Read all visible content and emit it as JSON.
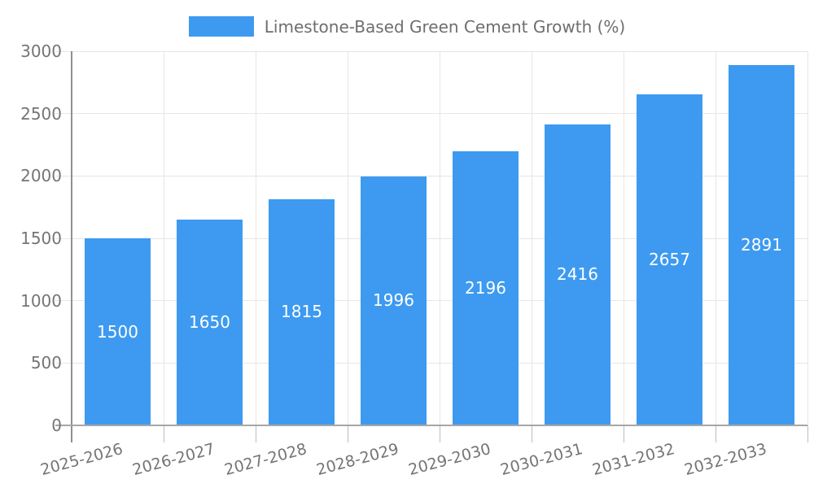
{
  "legend": {
    "label": "Limestone-Based Green Cement Growth (%)"
  },
  "chart_data": {
    "type": "bar",
    "title": "Limestone-Based Green Cement Growth (%)",
    "categories": [
      "2025-2026",
      "2026-2027",
      "2027-2028",
      "2028-2029",
      "2029-2030",
      "2030-2031",
      "2031-2032",
      "2032-2033"
    ],
    "series": [
      {
        "name": "Limestone-Based Green Cement Growth (%)",
        "values": [
          1500,
          1650,
          1815,
          1996,
          2196,
          2416,
          2657,
          2891
        ]
      }
    ],
    "xlabel": "",
    "ylabel": "",
    "ylim": [
      0,
      3000
    ],
    "yticks": [
      0,
      500,
      1000,
      1500,
      2000,
      2500,
      3000
    ],
    "bar_value_labels": [
      1500,
      1650,
      1815,
      1996,
      2196,
      2416,
      2657,
      2891
    ],
    "grid": true,
    "legend_position": "top",
    "x_label_rotation_deg": -15
  },
  "colors": {
    "bar": "#3d9af0",
    "bar_value_text": "#ffffff",
    "gridline": "#e6e6e6",
    "axis_line": "#8f8f8f",
    "tick_text": "#757575",
    "legend_text": "#6e6e6e",
    "background": "#ffffff"
  }
}
